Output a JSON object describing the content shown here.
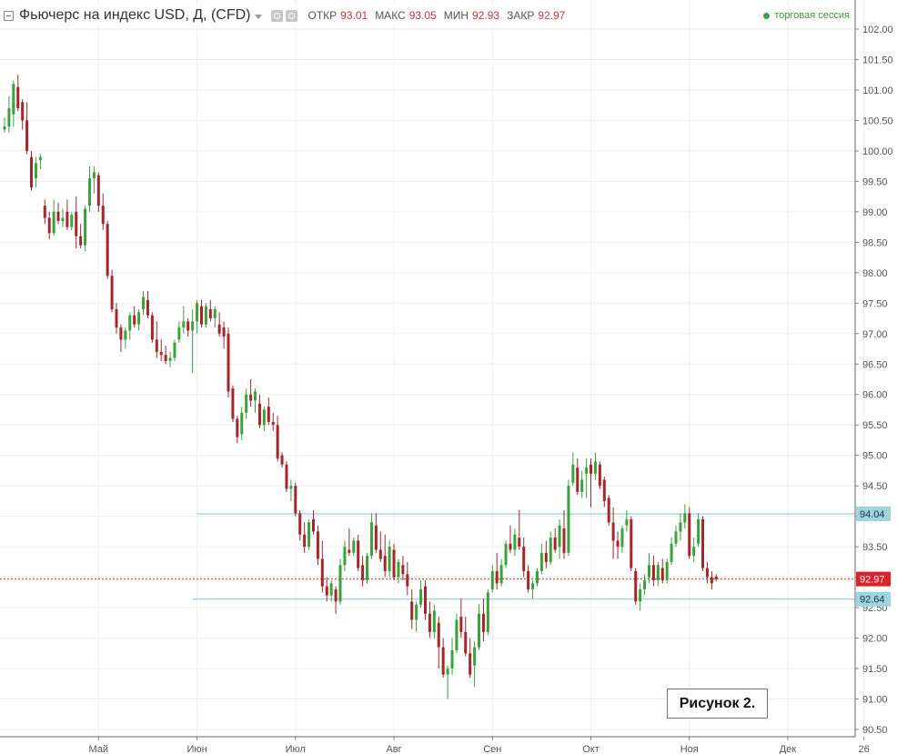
{
  "header": {
    "title": "Фьючерс на индекс USD, Д, (CFD)",
    "ohlc": [
      {
        "label": "ОТКР",
        "value": "93.01"
      },
      {
        "label": "МАКС",
        "value": "93.05"
      },
      {
        "label": "МИН",
        "value": "92.93"
      },
      {
        "label": "ЗАКР",
        "value": "92.97"
      }
    ],
    "session": "торговая сессия"
  },
  "figure_label": "Рисунок 2.",
  "colors": {
    "up": "#3aa23a",
    "down": "#a3262a",
    "level_line": "#7fc6cf",
    "last_price": "#d9242b",
    "grid": "#eeeeee"
  },
  "chart_data": {
    "type": "candlestick",
    "ylim": [
      90.5,
      102.0
    ],
    "y_ticks": [
      "102.00",
      "101.50",
      "101.00",
      "100.50",
      "100.00",
      "99.50",
      "99.00",
      "98.50",
      "98.00",
      "97.50",
      "97.00",
      "96.50",
      "96.00",
      "95.50",
      "95.00",
      "94.50",
      "94.00",
      "93.50",
      "93.00",
      "92.50",
      "92.00",
      "91.50",
      "91.00",
      "90.50"
    ],
    "x_ticks": [
      {
        "label": "Май",
        "index": 21
      },
      {
        "label": "Июн",
        "index": 43
      },
      {
        "label": "Июл",
        "index": 65
      },
      {
        "label": "Авг",
        "index": 87
      },
      {
        "label": "Сен",
        "index": 109
      },
      {
        "label": "Окт",
        "index": 131
      },
      {
        "label": "Ноя",
        "index": 153
      },
      {
        "label": "Дек",
        "index": 175
      },
      {
        "label": "26",
        "index": 192
      }
    ],
    "price_levels": [
      {
        "label": "94.04",
        "value": 94.04,
        "start_index": 43
      },
      {
        "label": "92.64",
        "value": 92.64,
        "start_index": 42
      }
    ],
    "last_price": {
      "label": "92.97",
      "value": 92.97
    },
    "candles": [
      {
        "o": 100.35,
        "h": 100.55,
        "l": 100.3,
        "c": 100.4
      },
      {
        "o": 100.4,
        "h": 100.9,
        "l": 100.3,
        "c": 100.7
      },
      {
        "o": 100.6,
        "h": 101.15,
        "l": 100.4,
        "c": 101.1
      },
      {
        "o": 101.05,
        "h": 101.25,
        "l": 100.65,
        "c": 100.7
      },
      {
        "o": 100.8,
        "h": 100.85,
        "l": 100.35,
        "c": 100.5
      },
      {
        "o": 100.5,
        "h": 100.8,
        "l": 99.95,
        "c": 100.0
      },
      {
        "o": 99.9,
        "h": 100.0,
        "l": 99.35,
        "c": 99.4
      },
      {
        "o": 99.55,
        "h": 99.9,
        "l": 99.4,
        "c": 99.8
      },
      {
        "o": 99.85,
        "h": 99.95,
        "l": 99.7,
        "c": 99.9
      },
      {
        "o": 99.1,
        "h": 99.2,
        "l": 98.8,
        "c": 98.9
      },
      {
        "o": 98.9,
        "h": 99.0,
        "l": 98.55,
        "c": 98.65
      },
      {
        "o": 98.65,
        "h": 99.2,
        "l": 98.6,
        "c": 99.0
      },
      {
        "o": 99.0,
        "h": 99.15,
        "l": 98.8,
        "c": 98.85
      },
      {
        "o": 98.85,
        "h": 99.05,
        "l": 98.75,
        "c": 98.9
      },
      {
        "o": 99.0,
        "h": 99.2,
        "l": 98.7,
        "c": 98.75
      },
      {
        "o": 98.75,
        "h": 99.0,
        "l": 98.7,
        "c": 98.95
      },
      {
        "o": 99.0,
        "h": 99.25,
        "l": 98.4,
        "c": 98.6
      },
      {
        "o": 98.6,
        "h": 98.8,
        "l": 98.4,
        "c": 98.45
      },
      {
        "o": 98.45,
        "h": 99.1,
        "l": 98.35,
        "c": 99.05
      },
      {
        "o": 99.1,
        "h": 99.75,
        "l": 99.0,
        "c": 99.55
      },
      {
        "o": 99.55,
        "h": 99.75,
        "l": 99.3,
        "c": 99.65
      },
      {
        "o": 99.6,
        "h": 99.65,
        "l": 99.0,
        "c": 99.1
      },
      {
        "o": 99.1,
        "h": 99.3,
        "l": 98.7,
        "c": 98.8
      },
      {
        "o": 98.8,
        "h": 98.85,
        "l": 97.9,
        "c": 97.95
      },
      {
        "o": 97.95,
        "h": 98.05,
        "l": 97.35,
        "c": 97.4
      },
      {
        "o": 97.4,
        "h": 97.5,
        "l": 97.0,
        "c": 97.1
      },
      {
        "o": 97.1,
        "h": 97.15,
        "l": 96.7,
        "c": 96.9
      },
      {
        "o": 96.9,
        "h": 97.1,
        "l": 96.75,
        "c": 97.05
      },
      {
        "o": 97.05,
        "h": 97.35,
        "l": 96.9,
        "c": 97.3
      },
      {
        "o": 97.3,
        "h": 97.45,
        "l": 97.1,
        "c": 97.15
      },
      {
        "o": 97.15,
        "h": 97.4,
        "l": 97.05,
        "c": 97.35
      },
      {
        "o": 97.4,
        "h": 97.7,
        "l": 97.3,
        "c": 97.6
      },
      {
        "o": 97.55,
        "h": 97.7,
        "l": 97.25,
        "c": 97.3
      },
      {
        "o": 97.3,
        "h": 97.35,
        "l": 96.85,
        "c": 96.9
      },
      {
        "o": 96.9,
        "h": 97.2,
        "l": 96.6,
        "c": 96.7
      },
      {
        "o": 96.7,
        "h": 96.9,
        "l": 96.55,
        "c": 96.65
      },
      {
        "o": 96.65,
        "h": 96.8,
        "l": 96.5,
        "c": 96.55
      },
      {
        "o": 96.55,
        "h": 96.7,
        "l": 96.45,
        "c": 96.6
      },
      {
        "o": 96.6,
        "h": 96.9,
        "l": 96.55,
        "c": 96.85
      },
      {
        "o": 96.9,
        "h": 97.2,
        "l": 96.85,
        "c": 97.1
      },
      {
        "o": 97.1,
        "h": 97.45,
        "l": 97.0,
        "c": 97.2
      },
      {
        "o": 97.2,
        "h": 97.25,
        "l": 96.95,
        "c": 97.05
      },
      {
        "o": 97.05,
        "h": 97.4,
        "l": 96.35,
        "c": 97.2
      },
      {
        "o": 97.2,
        "h": 97.55,
        "l": 97.0,
        "c": 97.5
      },
      {
        "o": 97.45,
        "h": 97.55,
        "l": 97.1,
        "c": 97.15
      },
      {
        "o": 97.15,
        "h": 97.5,
        "l": 97.1,
        "c": 97.45
      },
      {
        "o": 97.4,
        "h": 97.55,
        "l": 97.2,
        "c": 97.25
      },
      {
        "o": 97.25,
        "h": 97.45,
        "l": 97.1,
        "c": 97.4
      },
      {
        "o": 97.15,
        "h": 97.35,
        "l": 96.95,
        "c": 97.0
      },
      {
        "o": 97.1,
        "h": 97.2,
        "l": 96.75,
        "c": 96.95
      },
      {
        "o": 97.0,
        "h": 97.1,
        "l": 95.95,
        "c": 96.05
      },
      {
        "o": 96.1,
        "h": 96.15,
        "l": 95.55,
        "c": 95.6
      },
      {
        "o": 95.6,
        "h": 95.65,
        "l": 95.2,
        "c": 95.3
      },
      {
        "o": 95.35,
        "h": 95.8,
        "l": 95.25,
        "c": 95.7
      },
      {
        "o": 95.7,
        "h": 96.1,
        "l": 95.6,
        "c": 96.0
      },
      {
        "o": 96.0,
        "h": 96.25,
        "l": 95.8,
        "c": 95.9
      },
      {
        "o": 95.9,
        "h": 96.1,
        "l": 95.7,
        "c": 96.05
      },
      {
        "o": 95.85,
        "h": 96.0,
        "l": 95.45,
        "c": 95.5
      },
      {
        "o": 95.5,
        "h": 95.8,
        "l": 95.4,
        "c": 95.75
      },
      {
        "o": 95.8,
        "h": 95.95,
        "l": 95.5,
        "c": 95.55
      },
      {
        "o": 95.55,
        "h": 95.7,
        "l": 95.4,
        "c": 95.5
      },
      {
        "o": 95.5,
        "h": 95.65,
        "l": 94.9,
        "c": 94.95
      },
      {
        "o": 95.0,
        "h": 95.05,
        "l": 94.8,
        "c": 94.85
      },
      {
        "o": 94.85,
        "h": 94.9,
        "l": 94.4,
        "c": 94.45
      },
      {
        "o": 94.45,
        "h": 94.6,
        "l": 94.25,
        "c": 94.5
      },
      {
        "o": 94.5,
        "h": 94.55,
        "l": 94.0,
        "c": 94.05
      },
      {
        "o": 94.05,
        "h": 94.1,
        "l": 93.6,
        "c": 93.7
      },
      {
        "o": 93.7,
        "h": 93.9,
        "l": 93.4,
        "c": 93.5
      },
      {
        "o": 93.5,
        "h": 93.95,
        "l": 93.45,
        "c": 93.9
      },
      {
        "o": 93.95,
        "h": 94.1,
        "l": 93.7,
        "c": 93.75
      },
      {
        "o": 93.75,
        "h": 93.85,
        "l": 93.2,
        "c": 93.3
      },
      {
        "o": 93.3,
        "h": 93.6,
        "l": 92.75,
        "c": 92.85
      },
      {
        "o": 92.85,
        "h": 93.0,
        "l": 92.6,
        "c": 92.7
      },
      {
        "o": 92.7,
        "h": 92.95,
        "l": 92.6,
        "c": 92.9
      },
      {
        "o": 92.8,
        "h": 92.85,
        "l": 92.4,
        "c": 92.6
      },
      {
        "o": 92.6,
        "h": 93.3,
        "l": 92.55,
        "c": 93.2
      },
      {
        "o": 93.2,
        "h": 93.6,
        "l": 93.1,
        "c": 93.5
      },
      {
        "o": 93.45,
        "h": 93.8,
        "l": 93.35,
        "c": 93.4
      },
      {
        "o": 93.4,
        "h": 93.65,
        "l": 93.35,
        "c": 93.6
      },
      {
        "o": 93.6,
        "h": 93.7,
        "l": 93.1,
        "c": 93.15
      },
      {
        "o": 93.2,
        "h": 93.35,
        "l": 92.85,
        "c": 92.95
      },
      {
        "o": 92.95,
        "h": 93.4,
        "l": 92.9,
        "c": 93.35
      },
      {
        "o": 93.35,
        "h": 94.05,
        "l": 93.3,
        "c": 93.9
      },
      {
        "o": 93.85,
        "h": 94.05,
        "l": 93.4,
        "c": 93.45
      },
      {
        "o": 93.45,
        "h": 93.75,
        "l": 93.25,
        "c": 93.3
      },
      {
        "o": 93.35,
        "h": 93.7,
        "l": 93.0,
        "c": 93.1
      },
      {
        "o": 93.1,
        "h": 93.6,
        "l": 93.0,
        "c": 93.5
      },
      {
        "o": 93.45,
        "h": 93.55,
        "l": 92.95,
        "c": 93.0
      },
      {
        "o": 93.0,
        "h": 93.3,
        "l": 92.9,
        "c": 93.25
      },
      {
        "o": 93.2,
        "h": 93.35,
        "l": 92.95,
        "c": 93.05
      },
      {
        "o": 93.05,
        "h": 93.25,
        "l": 92.7,
        "c": 92.85
      },
      {
        "o": 92.6,
        "h": 92.8,
        "l": 92.15,
        "c": 92.3
      },
      {
        "o": 92.3,
        "h": 92.6,
        "l": 92.1,
        "c": 92.55
      },
      {
        "o": 92.55,
        "h": 92.95,
        "l": 92.5,
        "c": 92.8
      },
      {
        "o": 92.85,
        "h": 92.95,
        "l": 92.3,
        "c": 92.4
      },
      {
        "o": 92.4,
        "h": 92.6,
        "l": 92.0,
        "c": 92.1
      },
      {
        "o": 92.1,
        "h": 92.55,
        "l": 92.0,
        "c": 92.45
      },
      {
        "o": 92.25,
        "h": 92.35,
        "l": 91.5,
        "c": 91.85
      },
      {
        "o": 91.85,
        "h": 92.0,
        "l": 91.35,
        "c": 91.4
      },
      {
        "o": 91.4,
        "h": 91.55,
        "l": 91.0,
        "c": 91.5
      },
      {
        "o": 91.5,
        "h": 92.0,
        "l": 91.4,
        "c": 91.8
      },
      {
        "o": 91.8,
        "h": 92.4,
        "l": 91.75,
        "c": 92.3
      },
      {
        "o": 92.35,
        "h": 92.65,
        "l": 92.0,
        "c": 92.1
      },
      {
        "o": 92.1,
        "h": 92.35,
        "l": 91.7,
        "c": 91.75
      },
      {
        "o": 91.75,
        "h": 92.0,
        "l": 91.35,
        "c": 91.4
      },
      {
        "o": 91.55,
        "h": 91.95,
        "l": 91.2,
        "c": 91.85
      },
      {
        "o": 91.85,
        "h": 92.55,
        "l": 91.8,
        "c": 92.4
      },
      {
        "o": 92.4,
        "h": 92.65,
        "l": 91.95,
        "c": 92.1
      },
      {
        "o": 92.1,
        "h": 92.8,
        "l": 92.05,
        "c": 92.75
      },
      {
        "o": 92.8,
        "h": 93.2,
        "l": 92.75,
        "c": 93.1
      },
      {
        "o": 93.1,
        "h": 93.4,
        "l": 92.8,
        "c": 92.9
      },
      {
        "o": 92.9,
        "h": 93.3,
        "l": 92.85,
        "c": 93.2
      },
      {
        "o": 93.2,
        "h": 93.6,
        "l": 93.15,
        "c": 93.55
      },
      {
        "o": 93.55,
        "h": 93.85,
        "l": 93.4,
        "c": 93.45
      },
      {
        "o": 93.45,
        "h": 93.8,
        "l": 93.35,
        "c": 93.7
      },
      {
        "o": 93.65,
        "h": 94.1,
        "l": 93.45,
        "c": 93.5
      },
      {
        "o": 93.5,
        "h": 93.65,
        "l": 93.0,
        "c": 93.1
      },
      {
        "o": 93.1,
        "h": 93.2,
        "l": 92.75,
        "c": 92.8
      },
      {
        "o": 92.8,
        "h": 92.95,
        "l": 92.65,
        "c": 92.9
      },
      {
        "o": 92.9,
        "h": 93.15,
        "l": 92.85,
        "c": 93.1
      },
      {
        "o": 93.1,
        "h": 93.55,
        "l": 93.05,
        "c": 93.4
      },
      {
        "o": 93.4,
        "h": 93.6,
        "l": 93.15,
        "c": 93.25
      },
      {
        "o": 93.25,
        "h": 93.75,
        "l": 93.2,
        "c": 93.65
      },
      {
        "o": 93.65,
        "h": 93.8,
        "l": 93.4,
        "c": 93.45
      },
      {
        "o": 93.5,
        "h": 93.95,
        "l": 93.3,
        "c": 93.85
      },
      {
        "o": 93.8,
        "h": 94.1,
        "l": 93.3,
        "c": 93.4
      },
      {
        "o": 93.4,
        "h": 94.6,
        "l": 93.35,
        "c": 94.5
      },
      {
        "o": 94.55,
        "h": 95.05,
        "l": 94.5,
        "c": 94.85
      },
      {
        "o": 94.8,
        "h": 94.95,
        "l": 94.35,
        "c": 94.4
      },
      {
        "o": 94.4,
        "h": 94.75,
        "l": 94.3,
        "c": 94.6
      },
      {
        "o": 94.7,
        "h": 94.95,
        "l": 94.3,
        "c": 94.8
      },
      {
        "o": 94.85,
        "h": 94.95,
        "l": 94.15,
        "c": 94.7
      },
      {
        "o": 94.7,
        "h": 95.05,
        "l": 94.6,
        "c": 94.9
      },
      {
        "o": 94.85,
        "h": 94.9,
        "l": 94.45,
        "c": 94.5
      },
      {
        "o": 94.6,
        "h": 94.65,
        "l": 94.15,
        "c": 94.25
      },
      {
        "o": 94.3,
        "h": 94.35,
        "l": 93.85,
        "c": 93.9
      },
      {
        "o": 93.9,
        "h": 94.15,
        "l": 93.3,
        "c": 93.6
      },
      {
        "o": 93.6,
        "h": 93.75,
        "l": 93.3,
        "c": 93.5
      },
      {
        "o": 93.5,
        "h": 93.85,
        "l": 93.4,
        "c": 93.8
      },
      {
        "o": 93.85,
        "h": 94.1,
        "l": 93.75,
        "c": 93.95
      },
      {
        "o": 93.95,
        "h": 94.0,
        "l": 93.1,
        "c": 93.15
      },
      {
        "o": 93.1,
        "h": 93.15,
        "l": 92.55,
        "c": 92.6
      },
      {
        "o": 92.6,
        "h": 92.9,
        "l": 92.45,
        "c": 92.8
      },
      {
        "o": 92.8,
        "h": 93.05,
        "l": 92.7,
        "c": 92.95
      },
      {
        "o": 93.0,
        "h": 93.4,
        "l": 92.9,
        "c": 93.2
      },
      {
        "o": 93.2,
        "h": 93.35,
        "l": 92.85,
        "c": 92.95
      },
      {
        "o": 92.95,
        "h": 93.25,
        "l": 92.85,
        "c": 93.2
      },
      {
        "o": 93.15,
        "h": 93.3,
        "l": 92.9,
        "c": 92.95
      },
      {
        "o": 92.95,
        "h": 93.3,
        "l": 92.9,
        "c": 93.25
      },
      {
        "o": 93.25,
        "h": 93.65,
        "l": 93.2,
        "c": 93.55
      },
      {
        "o": 93.55,
        "h": 93.85,
        "l": 93.5,
        "c": 93.75
      },
      {
        "o": 93.75,
        "h": 94.05,
        "l": 93.6,
        "c": 93.9
      },
      {
        "o": 93.9,
        "h": 94.2,
        "l": 93.8,
        "c": 94.05
      },
      {
        "o": 94.05,
        "h": 94.15,
        "l": 93.3,
        "c": 93.35
      },
      {
        "o": 93.35,
        "h": 93.65,
        "l": 93.25,
        "c": 93.5
      },
      {
        "o": 93.55,
        "h": 94.05,
        "l": 93.5,
        "c": 93.95
      },
      {
        "o": 93.95,
        "h": 94.0,
        "l": 93.1,
        "c": 93.15
      },
      {
        "o": 93.15,
        "h": 93.25,
        "l": 92.9,
        "c": 93.0
      },
      {
        "o": 93.0,
        "h": 93.1,
        "l": 92.8,
        "c": 92.9
      },
      {
        "o": 93.01,
        "h": 93.05,
        "l": 92.93,
        "c": 92.97
      }
    ]
  }
}
